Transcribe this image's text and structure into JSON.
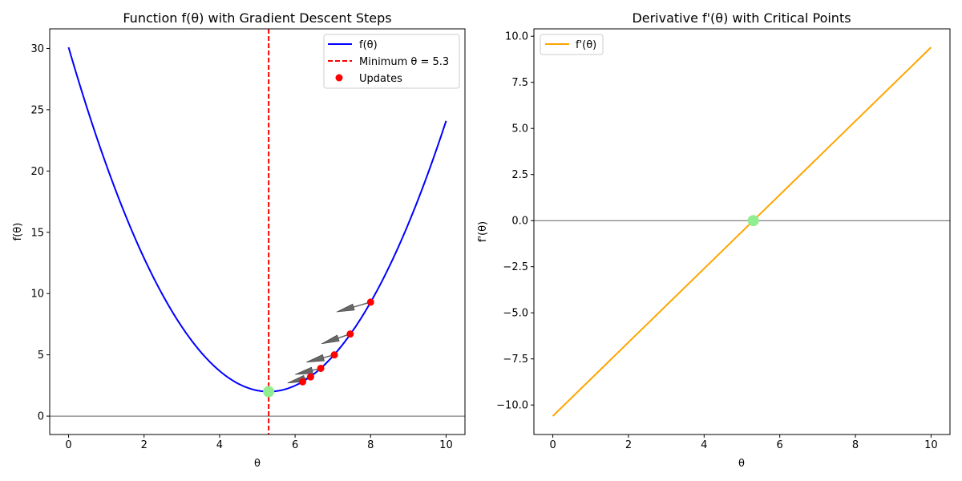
{
  "chart_data": [
    {
      "type": "line",
      "title": "Function f(θ) with Gradient Descent Steps",
      "xlabel": "θ",
      "ylabel": "f(θ)",
      "xlim": [
        -0.5,
        10.5
      ],
      "ylim": [
        -1.5,
        31.6
      ],
      "x_ticks": [
        0,
        2,
        4,
        6,
        8,
        10
      ],
      "y_ticks": [
        0,
        5,
        10,
        15,
        20,
        25,
        30
      ],
      "function": {
        "a": 1.0,
        "h": 5.3,
        "k": 2.0,
        "x_range": [
          0,
          10
        ]
      },
      "series": [
        {
          "name": "f(θ)",
          "type": "line",
          "color": "#0000ff"
        },
        {
          "name": "Minimum θ = 5.3",
          "type": "vline",
          "x": 5.3,
          "color": "#ff0000",
          "style": "dashed"
        },
        {
          "name": "Updates",
          "type": "scatter",
          "color": "#ff0000",
          "points": [
            [
              8.0,
              9.3
            ],
            [
              7.46,
              6.7
            ],
            [
              7.04,
              5.0
            ],
            [
              6.68,
              3.9
            ],
            [
              6.41,
              3.2
            ],
            [
              6.2,
              2.8
            ]
          ]
        }
      ],
      "arrows": [
        {
          "from": [
            8.0,
            9.3
          ],
          "to": [
            7.1,
            8.5
          ]
        },
        {
          "from": [
            7.46,
            6.7
          ],
          "to": [
            6.7,
            5.9
          ]
        },
        {
          "from": [
            7.04,
            5.0
          ],
          "to": [
            6.3,
            4.4
          ]
        },
        {
          "from": [
            6.68,
            3.9
          ],
          "to": [
            6.0,
            3.4
          ]
        },
        {
          "from": [
            6.41,
            3.2
          ],
          "to": [
            5.8,
            2.7
          ]
        }
      ],
      "minimum_marker": {
        "x": 5.3,
        "y": 2.0,
        "color": "#90ee90"
      },
      "zero_line": {
        "y": 0
      },
      "legend_position": "top-right"
    },
    {
      "type": "line",
      "title": "Derivative f'(θ) with Critical Points",
      "xlabel": "θ",
      "ylabel": "f'(θ)",
      "xlim": [
        -0.5,
        10.5
      ],
      "ylim": [
        -11.6,
        10.4
      ],
      "x_ticks": [
        0,
        2,
        4,
        6,
        8,
        10
      ],
      "y_ticks": [
        -10.0,
        -7.5,
        -5.0,
        -2.5,
        0.0,
        2.5,
        5.0,
        7.5,
        10.0
      ],
      "series": [
        {
          "name": "f'(θ)",
          "type": "line",
          "color": "#ffa500",
          "x": [
            0,
            10
          ],
          "y": [
            -10.6,
            9.4
          ]
        }
      ],
      "critical_point": {
        "x": 5.3,
        "y": 0.0,
        "color": "#90ee90"
      },
      "zero_line": {
        "y": 0
      },
      "legend_position": "top-left"
    }
  ]
}
